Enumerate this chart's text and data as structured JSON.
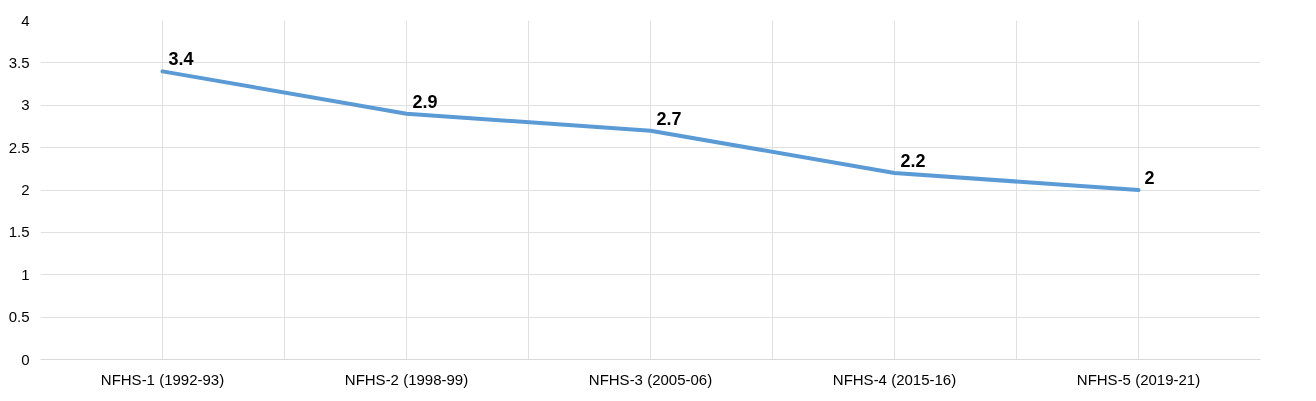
{
  "chart_data": {
    "type": "line",
    "categories": [
      "NFHS-1 (1992-93)",
      "NFHS-2 (1998-99)",
      "NFHS-3 (2005-06)",
      "NFHS-4 (2015-16)",
      "NFHS-5 (2019-21)"
    ],
    "series": [
      {
        "color": "#5b9bd5",
        "values": [
          3.4,
          2.9,
          2.7,
          2.2,
          2
        ]
      }
    ],
    "ylim": [
      0,
      4
    ],
    "yticks": [
      0,
      0.5,
      1,
      1.5,
      2,
      2.5,
      3,
      3.5,
      4
    ],
    "grid": true,
    "data_labels": true,
    "marker": "none",
    "line_style": "solid"
  }
}
